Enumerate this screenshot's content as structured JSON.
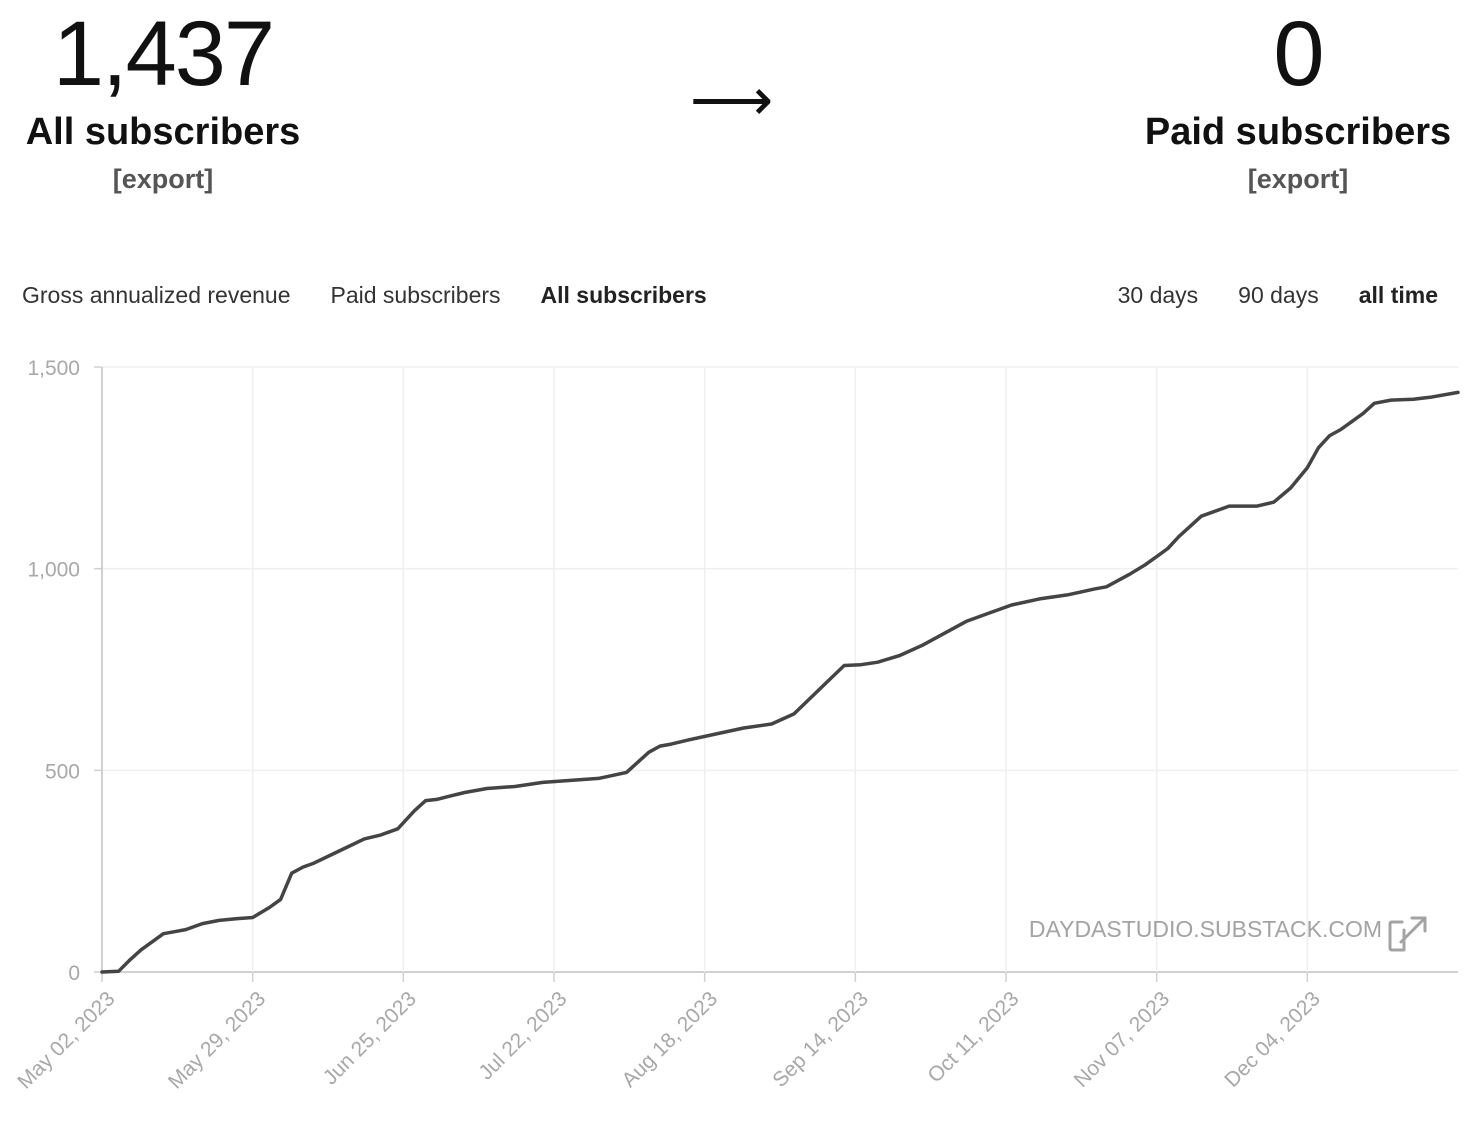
{
  "stats": {
    "all": {
      "value": "1,437",
      "label": "All subscribers",
      "export": "[export]"
    },
    "arrow": "⟶",
    "paid": {
      "value": "0",
      "label": "Paid subscribers",
      "export": "[export]"
    }
  },
  "metric_tabs": [
    {
      "label": "Gross annualized revenue",
      "active": false
    },
    {
      "label": "Paid subscribers",
      "active": false
    },
    {
      "label": "All subscribers",
      "active": true
    }
  ],
  "range_tabs": [
    {
      "label": "30 days",
      "active": false
    },
    {
      "label": "90 days",
      "active": false
    },
    {
      "label": "all time",
      "active": true
    }
  ],
  "watermark": {
    "text": "DAYDASTUDIO.SUBSTACK.COM",
    "icon": "external-link-icon"
  },
  "colors": {
    "line": "#444444",
    "grid": "#efefef",
    "axis": "#d0d0d0",
    "tick": "#a8a8a8"
  },
  "chart_data": {
    "type": "line",
    "title": "",
    "xlabel": "",
    "ylabel": "",
    "ylim": [
      0,
      1500
    ],
    "yticks": [
      0,
      500,
      1000,
      1500
    ],
    "ytick_labels": [
      "0",
      "500",
      "1,000",
      "1,500"
    ],
    "xlim": [
      "2023-05-02",
      "2023-12-31"
    ],
    "xticks": [
      "2023-05-02",
      "2023-05-29",
      "2023-06-25",
      "2023-07-22",
      "2023-08-18",
      "2023-09-14",
      "2023-10-11",
      "2023-11-07",
      "2023-12-04"
    ],
    "xtick_labels": [
      "May 02, 2023",
      "May 29, 2023",
      "Jun 25, 2023",
      "Jul 22, 2023",
      "Aug 18, 2023",
      "Sep 14, 2023",
      "Oct 11, 2023",
      "Nov 07, 2023",
      "Dec 04, 2023"
    ],
    "grid": true,
    "series": [
      {
        "name": "All subscribers",
        "x": [
          "2023-05-02",
          "2023-05-05",
          "2023-05-07",
          "2023-05-09",
          "2023-05-11",
          "2023-05-13",
          "2023-05-15",
          "2023-05-17",
          "2023-05-20",
          "2023-05-23",
          "2023-05-26",
          "2023-05-29",
          "2023-06-01",
          "2023-06-03",
          "2023-06-05",
          "2023-06-07",
          "2023-06-09",
          "2023-06-12",
          "2023-06-15",
          "2023-06-18",
          "2023-06-21",
          "2023-06-24",
          "2023-06-27",
          "2023-06-29",
          "2023-07-01",
          "2023-07-03",
          "2023-07-06",
          "2023-07-10",
          "2023-07-15",
          "2023-07-20",
          "2023-07-25",
          "2023-07-30",
          "2023-08-04",
          "2023-08-08",
          "2023-08-10",
          "2023-08-12",
          "2023-08-15",
          "2023-08-20",
          "2023-08-25",
          "2023-08-30",
          "2023-09-03",
          "2023-09-06",
          "2023-09-09",
          "2023-09-12",
          "2023-09-15",
          "2023-09-18",
          "2023-09-22",
          "2023-09-26",
          "2023-09-30",
          "2023-10-04",
          "2023-10-08",
          "2023-10-12",
          "2023-10-17",
          "2023-10-22",
          "2023-10-27",
          "2023-10-29",
          "2023-11-02",
          "2023-11-05",
          "2023-11-07",
          "2023-11-09",
          "2023-11-11",
          "2023-11-15",
          "2023-11-20",
          "2023-11-25",
          "2023-11-28",
          "2023-12-01",
          "2023-12-04",
          "2023-12-06",
          "2023-12-08",
          "2023-12-10",
          "2023-12-12",
          "2023-12-14",
          "2023-12-16",
          "2023-12-19",
          "2023-12-23",
          "2023-12-26",
          "2023-12-31"
        ],
        "y": [
          0,
          2,
          30,
          55,
          75,
          95,
          100,
          105,
          120,
          128,
          132,
          135,
          160,
          180,
          245,
          260,
          270,
          290,
          310,
          330,
          340,
          355,
          400,
          425,
          428,
          435,
          445,
          455,
          460,
          470,
          475,
          480,
          495,
          545,
          560,
          565,
          575,
          590,
          605,
          615,
          640,
          680,
          720,
          760,
          762,
          768,
          785,
          810,
          840,
          870,
          890,
          910,
          925,
          935,
          950,
          955,
          985,
          1010,
          1030,
          1050,
          1080,
          1130,
          1155,
          1155,
          1165,
          1200,
          1250,
          1300,
          1330,
          1345,
          1365,
          1385,
          1410,
          1418,
          1420,
          1425,
          1437
        ]
      }
    ]
  }
}
